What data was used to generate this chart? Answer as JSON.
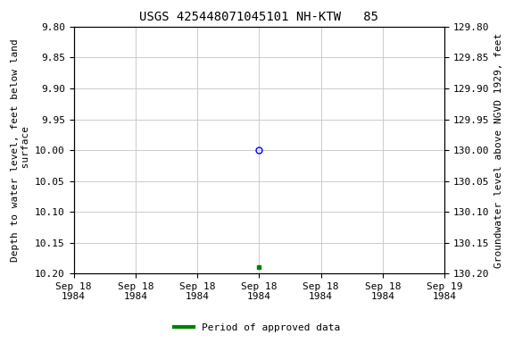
{
  "title": "USGS 425448071045101 NH-KTW   85",
  "ylabel_left": "Depth to water level, feet below land\n surface",
  "ylabel_right": "Groundwater level above NGVD 1929, feet",
  "ylim_left": [
    9.8,
    10.2
  ],
  "ylim_right": [
    130.2,
    129.8
  ],
  "left_yticks": [
    9.8,
    9.85,
    9.9,
    9.95,
    10.0,
    10.05,
    10.1,
    10.15,
    10.2
  ],
  "right_yticks": [
    130.2,
    130.15,
    130.1,
    130.05,
    130.0,
    129.95,
    129.9,
    129.85,
    129.8
  ],
  "x_ticks_hours": [
    0,
    4,
    8,
    12,
    16,
    20,
    24
  ],
  "x_tick_labels": [
    "Sep 18\n1984",
    "Sep 18\n1984",
    "Sep 18\n1984",
    "Sep 18\n1984",
    "Sep 18\n1984",
    "Sep 18\n1984",
    "Sep 19\n1984"
  ],
  "point1_hour": 12,
  "point1_y": 10.0,
  "point1_color": "#0000ff",
  "point1_marker": "o",
  "point2_hour": 12,
  "point2_y": 10.19,
  "point2_color": "#008000",
  "point2_marker": "s",
  "point2_size": 3,
  "grid_color": "#cccccc",
  "background_color": "#ffffff",
  "legend_label": "Period of approved data",
  "legend_color": "#008000",
  "title_fontsize": 10,
  "axis_label_fontsize": 8,
  "tick_fontsize": 8
}
